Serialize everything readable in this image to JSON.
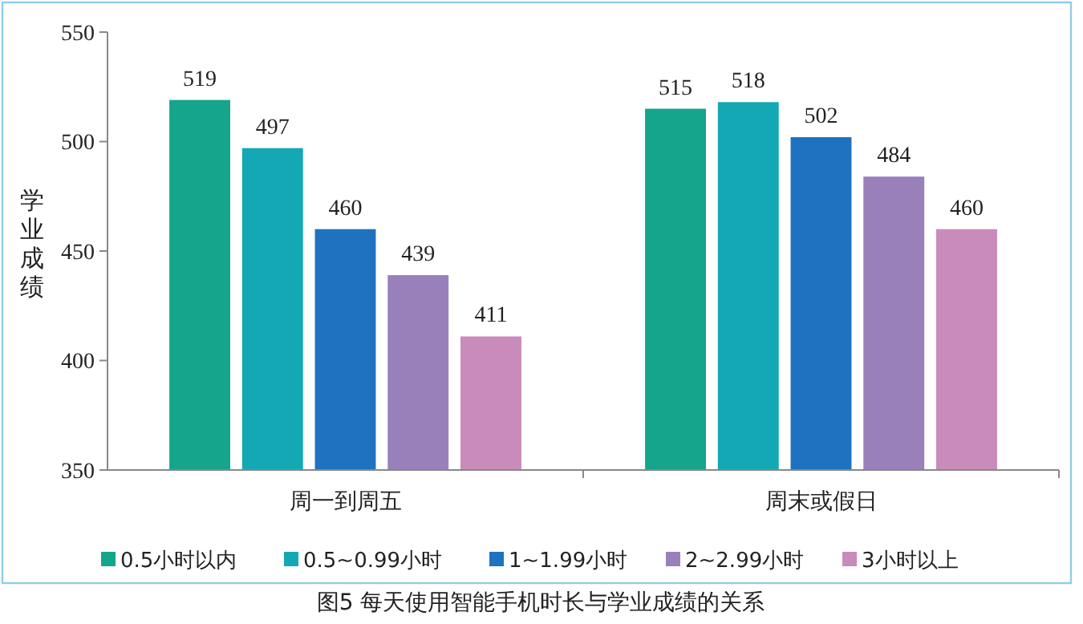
{
  "chart_data": {
    "type": "bar",
    "title": "图5 每天使用智能手机时长与学业成绩的关系",
    "ylabel": "学业成绩",
    "categories": [
      "周一到周五",
      "周末或假日"
    ],
    "series": [
      {
        "name": "0.5小时以内",
        "color": "#14a58c",
        "values": [
          519,
          515
        ]
      },
      {
        "name": "0.5~0.99小时",
        "color": "#14a8b4",
        "values": [
          497,
          518
        ]
      },
      {
        "name": "1~1.99小时",
        "color": "#1f72bf",
        "values": [
          460,
          502
        ]
      },
      {
        "name": "2~2.99小时",
        "color": "#9a80bb",
        "values": [
          439,
          484
        ]
      },
      {
        "name": "3小时以上",
        "color": "#c98bba",
        "values": [
          411,
          460
        ]
      }
    ],
    "ylim": [
      350,
      550
    ],
    "yticks": [
      350,
      400,
      450,
      500,
      550
    ],
    "data_labels": true,
    "legend": "bottom",
    "grid": false
  }
}
